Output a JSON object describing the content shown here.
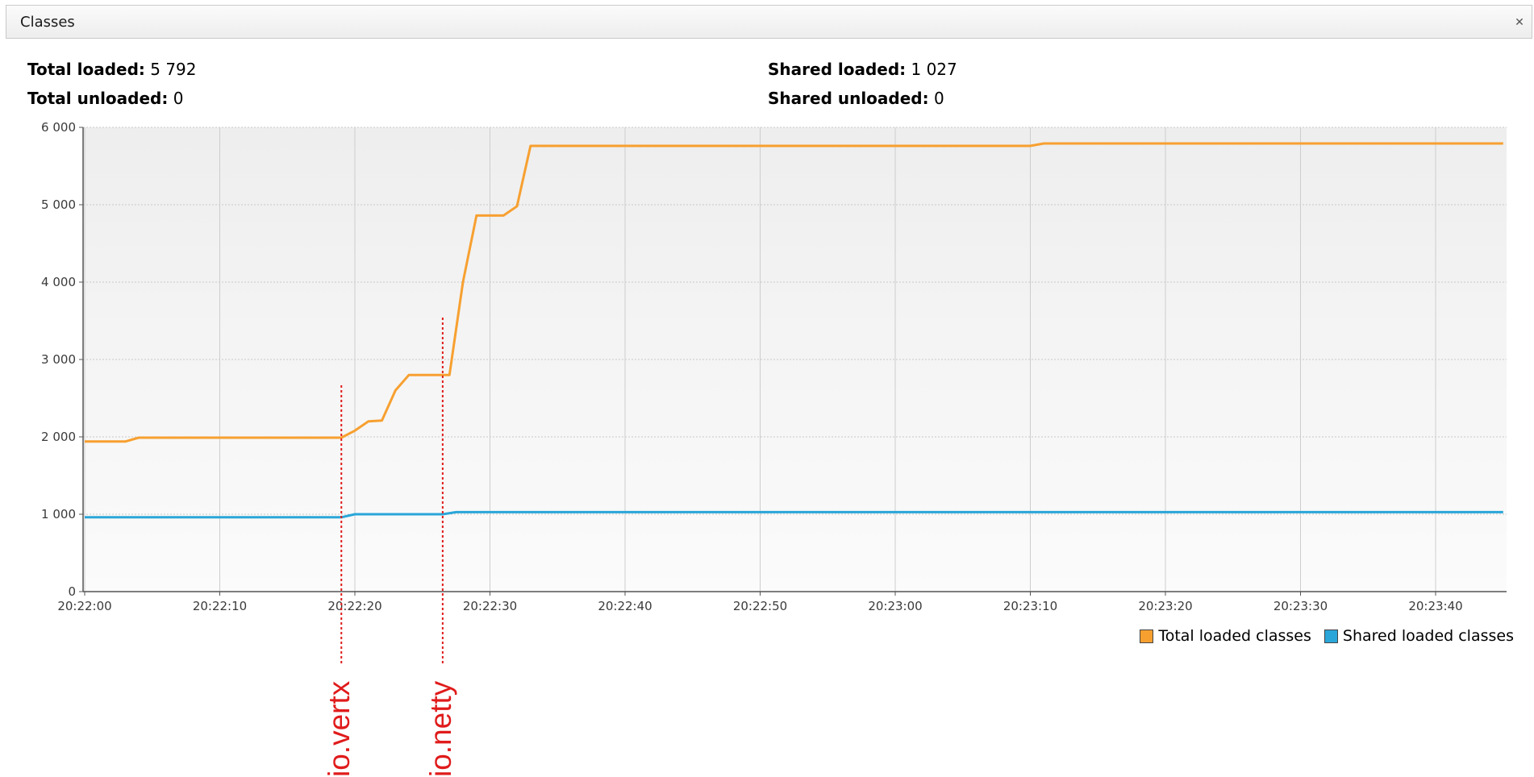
{
  "panel": {
    "title": "Classes",
    "close_icon": "close-icon"
  },
  "stats": {
    "total_loaded_label": "Total loaded:",
    "total_loaded_value": "5 792",
    "total_unloaded_label": "Total unloaded:",
    "total_unloaded_value": "0",
    "shared_loaded_label": "Shared loaded:",
    "shared_loaded_value": "1 027",
    "shared_unloaded_label": "Shared unloaded:",
    "shared_unloaded_value": "0"
  },
  "colors": {
    "total": "#f7a030",
    "shared": "#2aa6d8",
    "annotation": "#e01b1b"
  },
  "legend": {
    "total": "Total loaded classes",
    "shared": "Shared loaded classes"
  },
  "annotations": [
    {
      "label": "io.vertx",
      "time": 19
    },
    {
      "label": "io.netty",
      "time": 26.5
    }
  ],
  "chart_data": {
    "type": "line",
    "title": "",
    "x_tick_labels": [
      "20:22:00",
      "20:22:10",
      "20:22:20",
      "20:22:30",
      "20:22:40",
      "20:22:50",
      "20:23:00",
      "20:23:10",
      "20:23:20",
      "20:23:30",
      "20:23:40"
    ],
    "y_tick_labels": [
      "0",
      "1 000",
      "2 000",
      "3 000",
      "4 000",
      "5 000",
      "6 000"
    ],
    "x_unit": "seconds since 20:22:00",
    "xlim": [
      0,
      105
    ],
    "ylim": [
      0,
      6000
    ],
    "grid": true,
    "legend_position": "bottom-right",
    "series": [
      {
        "name": "Total loaded classes",
        "x": [
          0,
          3,
          4,
          19,
          20,
          21,
          22,
          23,
          24,
          25,
          26,
          27,
          28,
          29,
          30,
          31,
          32,
          33,
          70,
          71,
          105
        ],
        "values": [
          1940,
          1940,
          1990,
          1990,
          2080,
          2200,
          2210,
          2600,
          2800,
          2800,
          2800,
          2800,
          4000,
          4860,
          4860,
          4860,
          4980,
          5760,
          5760,
          5792,
          5792
        ]
      },
      {
        "name": "Shared loaded classes",
        "x": [
          0,
          19,
          20,
          26.5,
          27.5,
          105
        ],
        "values": [
          960,
          960,
          1000,
          1000,
          1027,
          1027
        ]
      }
    ]
  }
}
